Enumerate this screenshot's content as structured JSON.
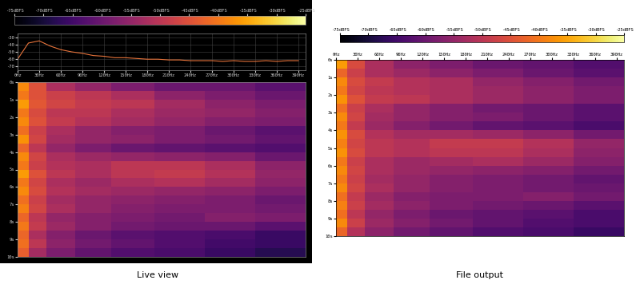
{
  "chart_data": [
    {
      "type": "line",
      "color": "#e8743b",
      "grid": true,
      "x": [
        0,
        15,
        30,
        45,
        60,
        75,
        90,
        105,
        120,
        135,
        150,
        165,
        180,
        195,
        210,
        225,
        240,
        255,
        270,
        285,
        300,
        315,
        330,
        345,
        360,
        375,
        390
      ],
      "values": [
        -60,
        -38,
        -35,
        -42,
        -47,
        -50,
        -52,
        -55,
        -56,
        -58,
        -58,
        -59,
        -60,
        -60,
        -61,
        -61,
        -62,
        -62,
        -62,
        -63,
        -62,
        -63,
        -63,
        -62,
        -63,
        -62,
        -62
      ],
      "xlim": [
        0,
        400
      ],
      "ylim": [
        -75,
        -25
      ],
      "xticks": [
        {
          "value": 0,
          "label": "0Hz"
        },
        {
          "value": 30,
          "label": "30Hz"
        },
        {
          "value": 60,
          "label": "60Hz"
        },
        {
          "value": 90,
          "label": "90Hz"
        },
        {
          "value": 120,
          "label": "120Hz"
        },
        {
          "value": 150,
          "label": "150Hz"
        },
        {
          "value": 180,
          "label": "180Hz"
        },
        {
          "value": 210,
          "label": "210Hz"
        },
        {
          "value": 240,
          "label": "240Hz"
        },
        {
          "value": 270,
          "label": "270Hz"
        },
        {
          "value": 300,
          "label": "300Hz"
        },
        {
          "value": 330,
          "label": "330Hz"
        },
        {
          "value": 360,
          "label": "360Hz"
        },
        {
          "value": 390,
          "label": "390Hz"
        }
      ],
      "yticks": [
        -30,
        -40,
        -50,
        -60,
        -70
      ]
    },
    {
      "type": "heatmap",
      "title": "Live view",
      "tick_labels": "y",
      "x_edges": [
        0,
        15,
        40,
        80,
        130,
        190,
        260,
        330,
        400
      ],
      "y_edges": [
        0,
        0.5,
        1,
        1.5,
        2,
        2.5,
        3,
        3.5,
        4,
        4.5,
        5,
        5.5,
        6,
        6.5,
        7,
        7.5,
        8,
        8.5,
        9,
        9.5,
        10
      ],
      "cells": [
        [
          -38,
          -45,
          -52,
          -55,
          -58,
          -60,
          -60,
          -62
        ],
        [
          -40,
          -45,
          -48,
          -50,
          -52,
          -56,
          -58,
          -60
        ],
        [
          -36,
          -44,
          -47,
          -49,
          -50,
          -53,
          -56,
          -58
        ],
        [
          -40,
          -46,
          -50,
          -50,
          -52,
          -54,
          -55,
          -57
        ],
        [
          -38,
          -45,
          -49,
          -51,
          -53,
          -55,
          -57,
          -58
        ],
        [
          -41,
          -48,
          -52,
          -55,
          -57,
          -58,
          -60,
          -62
        ],
        [
          -37,
          -47,
          -53,
          -55,
          -56,
          -58,
          -59,
          -61
        ],
        [
          -42,
          -50,
          -55,
          -58,
          -60,
          -61,
          -62,
          -63
        ],
        [
          -38,
          -47,
          -52,
          -54,
          -55,
          -56,
          -57,
          -60
        ],
        [
          -40,
          -48,
          -51,
          -52,
          -50,
          -50,
          -52,
          -56
        ],
        [
          -36,
          -45,
          -50,
          -52,
          -50,
          -49,
          -51,
          -55
        ],
        [
          -40,
          -47,
          -52,
          -54,
          -52,
          -51,
          -53,
          -56
        ],
        [
          -38,
          -46,
          -51,
          -53,
          -54,
          -55,
          -56,
          -58
        ],
        [
          -41,
          -48,
          -53,
          -55,
          -56,
          -57,
          -58,
          -60
        ],
        [
          -39,
          -47,
          -52,
          -55,
          -57,
          -58,
          -58,
          -59
        ],
        [
          -42,
          -50,
          -55,
          -57,
          -58,
          -59,
          -57,
          -58
        ],
        [
          -40,
          -49,
          -54,
          -57,
          -59,
          -60,
          -60,
          -62
        ],
        [
          -42,
          -52,
          -57,
          -60,
          -62,
          -63,
          -64,
          -66
        ],
        [
          -41,
          -50,
          -56,
          -59,
          -61,
          -63,
          -65,
          -66
        ],
        [
          -43,
          -53,
          -58,
          -61,
          -63,
          -64,
          -66,
          -68
        ]
      ],
      "xlim": [
        0,
        400
      ],
      "ylim": [
        10,
        0
      ],
      "yticks": [
        {
          "value": 0,
          "label": "0s"
        },
        {
          "value": 1,
          "label": "1s"
        },
        {
          "value": 2,
          "label": "2s"
        },
        {
          "value": 3,
          "label": "3s"
        },
        {
          "value": 4,
          "label": "4s"
        },
        {
          "value": 5,
          "label": "5s"
        },
        {
          "value": 6,
          "label": "6s"
        },
        {
          "value": 7,
          "label": "7s"
        },
        {
          "value": 8,
          "label": "8s"
        },
        {
          "value": 9,
          "label": "9s"
        },
        {
          "value": 10,
          "label": "10s"
        }
      ],
      "color_range": [
        -75,
        -25
      ],
      "color_ticks": [
        {
          "value": -75,
          "label": "-75dBFS"
        },
        {
          "value": -70,
          "label": "-70dBFS"
        },
        {
          "value": -65,
          "label": "-65dBFS"
        },
        {
          "value": -60,
          "label": "-60dBFS"
        },
        {
          "value": -55,
          "label": "-55dBFS"
        },
        {
          "value": -50,
          "label": "-50dBFS"
        },
        {
          "value": -45,
          "label": "-45dBFS"
        },
        {
          "value": -40,
          "label": "-40dBFS"
        },
        {
          "value": -35,
          "label": "-35dBFS"
        },
        {
          "value": -30,
          "label": "-30dBFS"
        },
        {
          "value": -25,
          "label": "-25dBFS"
        }
      ]
    },
    {
      "type": "heatmap",
      "title": "File output",
      "x_edges": [
        0,
        15,
        40,
        80,
        130,
        190,
        260,
        330,
        400
      ],
      "y_edges": [
        0,
        0.5,
        1,
        1.5,
        2,
        2.5,
        3,
        3.5,
        4,
        4.5,
        5,
        5.5,
        6,
        6.5,
        7,
        7.5,
        8,
        8.5,
        9,
        9.5,
        10
      ],
      "cells": [
        [
          -36,
          -46,
          -52,
          -56,
          -58,
          -60,
          -61,
          -63
        ],
        [
          -42,
          -48,
          -52,
          -54,
          -56,
          -58,
          -60,
          -62
        ],
        [
          -38,
          -46,
          -49,
          -51,
          -52,
          -55,
          -57,
          -59
        ],
        [
          -40,
          -47,
          -50,
          -51,
          -52,
          -54,
          -56,
          -58
        ],
        [
          -37,
          -45,
          -49,
          -50,
          -52,
          -54,
          -56,
          -58
        ],
        [
          -41,
          -48,
          -52,
          -55,
          -57,
          -59,
          -60,
          -62
        ],
        [
          -38,
          -47,
          -53,
          -55,
          -57,
          -58,
          -60,
          -62
        ],
        [
          -40,
          -49,
          -54,
          -57,
          -59,
          -61,
          -62,
          -64
        ],
        [
          -37,
          -46,
          -51,
          -53,
          -53,
          -54,
          -56,
          -59
        ],
        [
          -39,
          -47,
          -50,
          -51,
          -49,
          -49,
          -51,
          -55
        ],
        [
          -37,
          -46,
          -50,
          -51,
          -50,
          -50,
          -52,
          -56
        ],
        [
          -40,
          -48,
          -52,
          -54,
          -53,
          -52,
          -54,
          -57
        ],
        [
          -38,
          -47,
          -52,
          -54,
          -55,
          -56,
          -57,
          -59
        ],
        [
          -40,
          -48,
          -53,
          -55,
          -57,
          -58,
          -59,
          -61
        ],
        [
          -38,
          -47,
          -52,
          -55,
          -57,
          -58,
          -59,
          -60
        ],
        [
          -41,
          -49,
          -54,
          -57,
          -58,
          -58,
          -57,
          -59
        ],
        [
          -39,
          -48,
          -53,
          -56,
          -58,
          -59,
          -60,
          -62
        ],
        [
          -41,
          -50,
          -55,
          -58,
          -60,
          -61,
          -62,
          -64
        ],
        [
          -38,
          -48,
          -54,
          -57,
          -59,
          -61,
          -63,
          -64
        ],
        [
          -42,
          -51,
          -56,
          -59,
          -61,
          -63,
          -64,
          -66
        ]
      ],
      "xlim": [
        0,
        400
      ],
      "ylim": [
        10,
        0
      ],
      "xticks": [
        {
          "value": 0,
          "label": "0Hz"
        },
        {
          "value": 30,
          "label": "30Hz"
        },
        {
          "value": 60,
          "label": "60Hz"
        },
        {
          "value": 90,
          "label": "90Hz"
        },
        {
          "value": 120,
          "label": "120Hz"
        },
        {
          "value": 150,
          "label": "150Hz"
        },
        {
          "value": 180,
          "label": "180Hz"
        },
        {
          "value": 210,
          "label": "210Hz"
        },
        {
          "value": 240,
          "label": "240Hz"
        },
        {
          "value": 270,
          "label": "270Hz"
        },
        {
          "value": 300,
          "label": "300Hz"
        },
        {
          "value": 330,
          "label": "330Hz"
        },
        {
          "value": 360,
          "label": "360Hz"
        },
        {
          "value": 390,
          "label": "390Hz"
        }
      ],
      "yticks": [
        {
          "value": 0,
          "label": "0s"
        },
        {
          "value": 1,
          "label": "1s"
        },
        {
          "value": 2,
          "label": "2s"
        },
        {
          "value": 3,
          "label": "3s"
        },
        {
          "value": 4,
          "label": "4s"
        },
        {
          "value": 5,
          "label": "5s"
        },
        {
          "value": 6,
          "label": "6s"
        },
        {
          "value": 7,
          "label": "7s"
        },
        {
          "value": 8,
          "label": "8s"
        },
        {
          "value": 9,
          "label": "9s"
        },
        {
          "value": 10,
          "label": "10s"
        }
      ],
      "color_range": [
        -75,
        -25
      ],
      "color_ticks": [
        {
          "value": -75,
          "label": "-75dBFS"
        },
        {
          "value": -70,
          "label": "-70dBFS"
        },
        {
          "value": -65,
          "label": "-65dBFS"
        },
        {
          "value": -60,
          "label": "-60dBFS"
        },
        {
          "value": -55,
          "label": "-55dBFS"
        },
        {
          "value": -50,
          "label": "-50dBFS"
        },
        {
          "value": -45,
          "label": "-45dBFS"
        },
        {
          "value": -40,
          "label": "-40dBFS"
        },
        {
          "value": -35,
          "label": "-35dBFS"
        },
        {
          "value": -30,
          "label": "-30dBFS"
        },
        {
          "value": -25,
          "label": "-25dBFS"
        }
      ]
    }
  ]
}
